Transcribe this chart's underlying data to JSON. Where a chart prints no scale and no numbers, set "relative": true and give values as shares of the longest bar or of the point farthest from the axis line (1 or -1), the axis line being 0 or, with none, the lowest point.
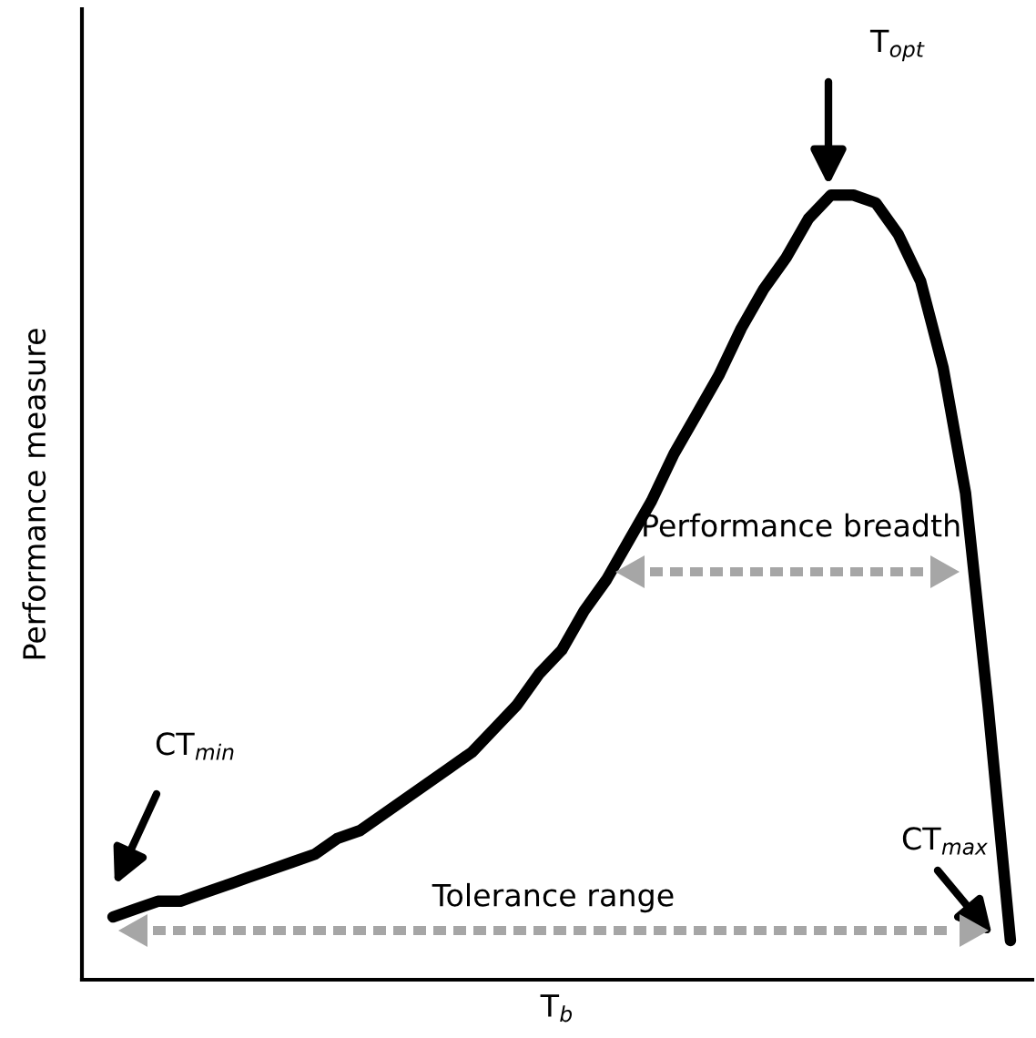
{
  "chart_data": {
    "type": "line",
    "relative": true,
    "xlabel": "T$_{b}$",
    "ylabel": "Performance measure",
    "categories": [
      null,
      null,
      null,
      null,
      null,
      null,
      null,
      null,
      null,
      null,
      null,
      null,
      null,
      null,
      null,
      null,
      null,
      null,
      null,
      null,
      null,
      null,
      null,
      null,
      null,
      null,
      null,
      null,
      null,
      null,
      null,
      null,
      null,
      null,
      null,
      null,
      null,
      null,
      null,
      null,
      null
    ],
    "series": [
      {
        "color": "#000000",
        "values": [
          0.08,
          0.09,
          0.1,
          0.1,
          0.11,
          0.12,
          0.13,
          0.14,
          0.15,
          0.16,
          0.18,
          0.19,
          0.21,
          0.23,
          0.25,
          0.27,
          0.29,
          0.32,
          0.35,
          0.39,
          0.42,
          0.47,
          0.51,
          0.56,
          0.61,
          0.67,
          0.72,
          0.77,
          0.83,
          0.88,
          0.92,
          0.97,
          1.0,
          1.0,
          0.99,
          0.95,
          0.89,
          0.78,
          0.62,
          0.35,
          0.05
        ]
      }
    ],
    "annotations": [
      "T$_{opt}$",
      "CT$_{min}$",
      "CT$_{max}$",
      "Performance breadth",
      "Tolerance range"
    ]
  }
}
